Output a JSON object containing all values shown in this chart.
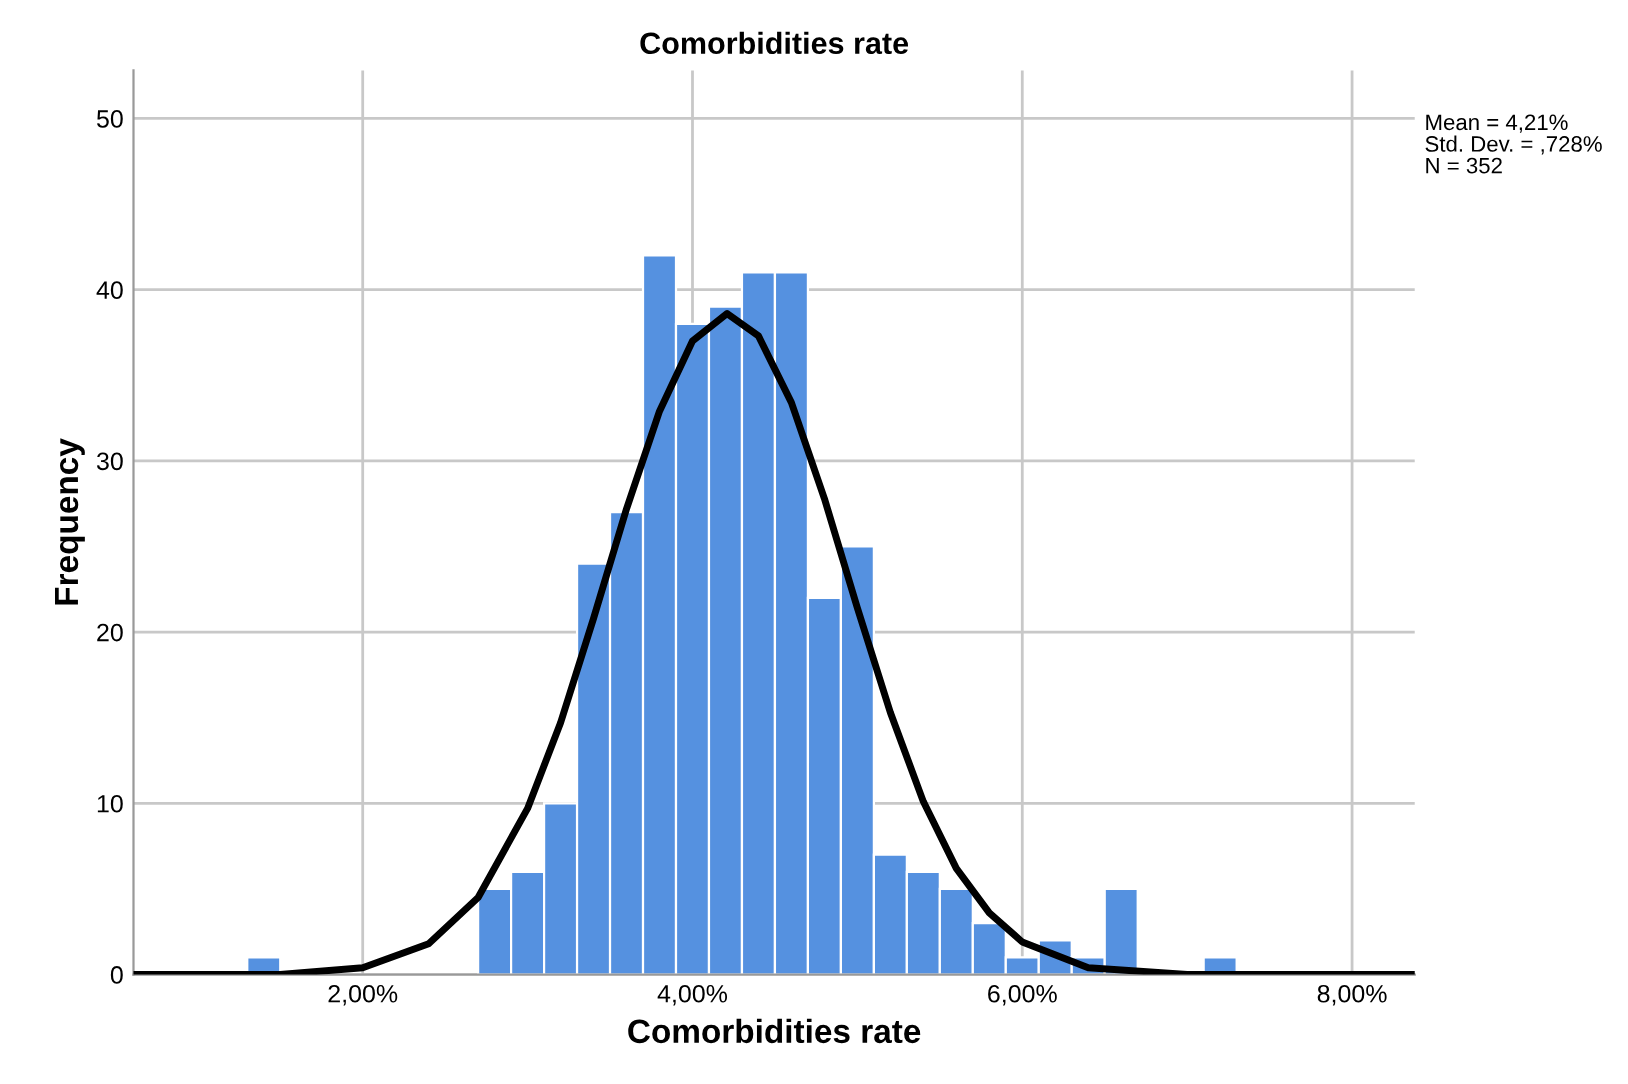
{
  "chart_data": {
    "type": "histogram",
    "title": "Comorbidities rate",
    "xlabel": "Comorbidities rate",
    "ylabel": "Frequency",
    "bins": [
      1.3,
      1.5,
      1.7,
      1.9,
      2.1,
      2.3,
      2.5,
      2.7,
      2.9,
      3.1,
      3.3,
      3.5,
      3.7,
      3.9,
      4.1,
      4.3,
      4.5,
      4.7,
      4.9,
      5.1,
      5.3,
      5.5,
      5.7,
      5.9,
      6.1,
      6.3,
      6.5,
      6.7,
      6.9,
      7.1,
      7.3
    ],
    "values": [
      1,
      0,
      0,
      0,
      0,
      0,
      0,
      5,
      6,
      10,
      24,
      27,
      42,
      38,
      39,
      41,
      41,
      22,
      25,
      7,
      6,
      5,
      3,
      1,
      2,
      1,
      5,
      0,
      0,
      1
    ],
    "color": "#5591e0",
    "series": [
      {
        "type": "line",
        "color": "#000000",
        "x": [
          0.61,
          1.5,
          2.0,
          2.4,
          2.7,
          3.0,
          3.2,
          3.4,
          3.6,
          3.8,
          4.0,
          4.21,
          4.4,
          4.6,
          4.8,
          5.0,
          5.2,
          5.4,
          5.6,
          5.8,
          6.0,
          6.4,
          7.0,
          8.38
        ],
        "values": [
          0,
          0,
          0.4,
          1.8,
          4.5,
          9.7,
          14.7,
          20.8,
          27.2,
          32.9,
          37.0,
          38.6,
          37.3,
          33.4,
          27.8,
          21.4,
          15.3,
          10.1,
          6.2,
          3.6,
          1.9,
          0.4,
          0,
          0
        ]
      }
    ],
    "xlim": [
      0.61,
      8.38
    ],
    "ylim": [
      0,
      52.8
    ],
    "xticks": [
      {
        "value": 2,
        "label": "2,00%"
      },
      {
        "value": 4,
        "label": "4,00%"
      },
      {
        "value": 6,
        "label": "6,00%"
      },
      {
        "value": 8,
        "label": "8,00%"
      }
    ],
    "yticks": [
      0,
      10,
      20,
      30,
      40,
      50
    ],
    "grid": true,
    "annotations": [
      "Mean = 4,21%",
      "Std. Dev. = ,728%",
      "N = 352"
    ]
  }
}
